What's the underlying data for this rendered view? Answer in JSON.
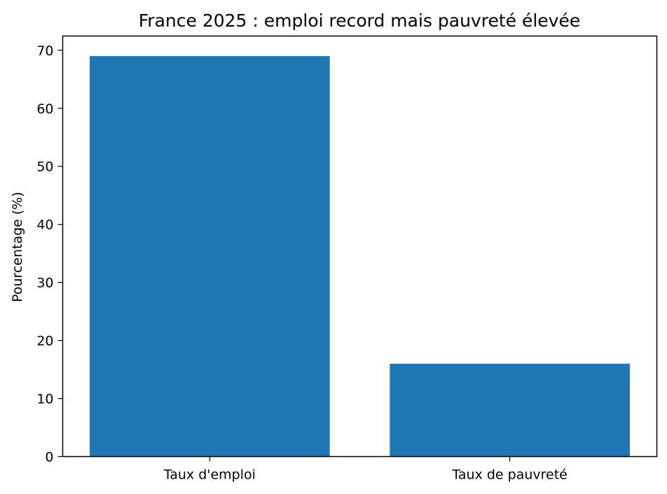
{
  "chart_data": {
    "type": "bar",
    "title": "France 2025 : emploi record mais pauvreté élevée",
    "xlabel": "",
    "ylabel": "Pourcentage (%)",
    "categories": [
      "Taux d'emploi",
      "Taux de pauvreté"
    ],
    "values": [
      69,
      16
    ],
    "ylim": [
      0,
      72.45
    ],
    "yticks": [
      0,
      10,
      20,
      30,
      40,
      50,
      60,
      70
    ],
    "bar_color": "#1f77b4",
    "grid": false,
    "legend": "none"
  }
}
